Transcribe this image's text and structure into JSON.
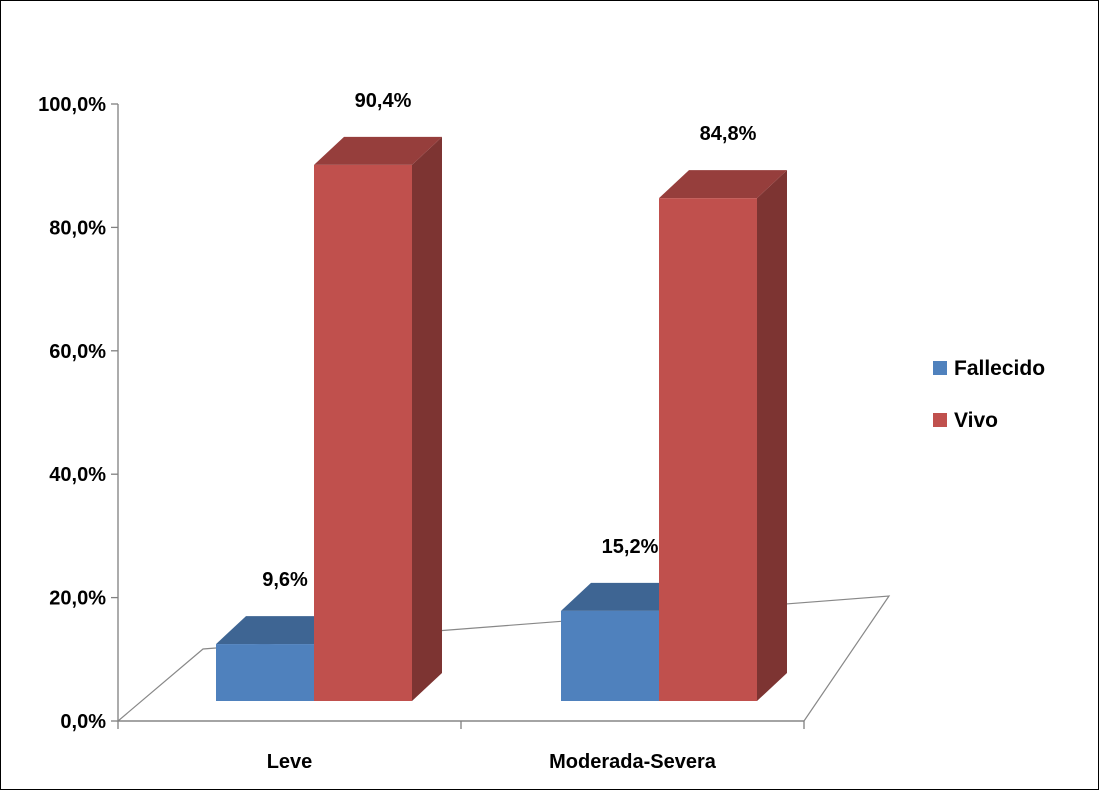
{
  "chart_data": {
    "type": "bar",
    "categories": [
      "Leve",
      "Moderada-Severa"
    ],
    "series": [
      {
        "name": "Fallecido",
        "values": [
          9.6,
          15.2
        ],
        "labels": [
          "9,6%",
          "15,2%"
        ],
        "color": "#4F81BD"
      },
      {
        "name": "Vivo",
        "values": [
          90.4,
          84.8
        ],
        "labels": [
          "90,4%",
          "84,8%"
        ],
        "color": "#C0504D"
      }
    ],
    "y_ticks": [
      "0,0%",
      "20,0%",
      "40,0%",
      "60,0%",
      "80,0%",
      "100,0%"
    ],
    "ylim": [
      0,
      100
    ],
    "legend_position": "right",
    "grid": false,
    "style": "3d-clustered-column"
  }
}
